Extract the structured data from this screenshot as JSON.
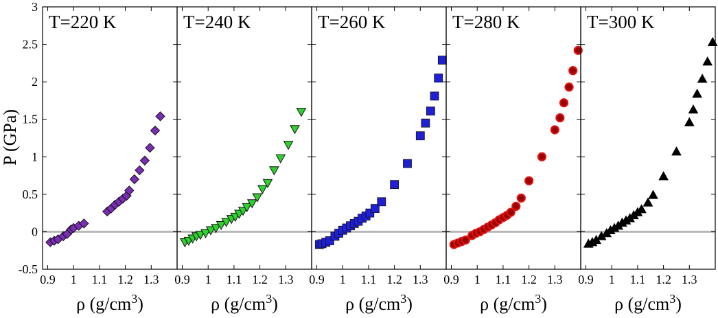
{
  "chart_data": {
    "type": "scatter",
    "ylabel": "P (GPa)",
    "xlabel": "ρ (g/cm³)",
    "xlabel_base": "ρ (g/cm",
    "xlabel_sup": "3",
    "xlabel_close": ")",
    "ylim": [
      -0.5,
      3
    ],
    "xlim": [
      0.88,
      1.4
    ],
    "yticks": [
      -0.5,
      0,
      0.5,
      1,
      1.5,
      2,
      2.5,
      3
    ],
    "ytick_labels": [
      "-0.5",
      "0",
      "0.5",
      "1",
      "1.5",
      "2",
      "2.5",
      "3"
    ],
    "xticks": [
      0.9,
      1.0,
      1.1,
      1.2,
      1.3
    ],
    "xtick_labels": [
      "0.9",
      "1",
      "1.1",
      "1.2",
      "1.3"
    ],
    "reference_line_y": 0,
    "panels": [
      {
        "title": "T=220 K",
        "marker": "diamond",
        "color": "#7a2db5",
        "points": [
          [
            0.91,
            -0.14
          ],
          [
            0.925,
            -0.12
          ],
          [
            0.94,
            -0.1
          ],
          [
            0.96,
            -0.06
          ],
          [
            0.975,
            -0.03
          ],
          [
            0.99,
            0.03
          ],
          [
            1.0,
            0.05
          ],
          [
            1.02,
            0.08
          ],
          [
            1.04,
            0.11
          ],
          [
            1.13,
            0.27
          ],
          [
            1.145,
            0.31
          ],
          [
            1.16,
            0.36
          ],
          [
            1.175,
            0.4
          ],
          [
            1.19,
            0.44
          ],
          [
            1.205,
            0.48
          ],
          [
            1.215,
            0.55
          ],
          [
            1.235,
            0.7
          ],
          [
            1.255,
            0.82
          ],
          [
            1.275,
            0.95
          ],
          [
            1.295,
            1.12
          ],
          [
            1.315,
            1.35
          ],
          [
            1.335,
            1.54
          ]
        ]
      },
      {
        "title": "T=240 K",
        "marker": "triangle-down",
        "color": "#2fd12f",
        "points": [
          [
            0.91,
            -0.14
          ],
          [
            0.925,
            -0.12
          ],
          [
            0.94,
            -0.09
          ],
          [
            0.955,
            -0.06
          ],
          [
            0.97,
            -0.04
          ],
          [
            0.99,
            -0.02
          ],
          [
            1.01,
            0.02
          ],
          [
            1.03,
            0.05
          ],
          [
            1.05,
            0.09
          ],
          [
            1.07,
            0.13
          ],
          [
            1.09,
            0.17
          ],
          [
            1.105,
            0.2
          ],
          [
            1.12,
            0.24
          ],
          [
            1.135,
            0.28
          ],
          [
            1.15,
            0.33
          ],
          [
            1.17,
            0.38
          ],
          [
            1.19,
            0.46
          ],
          [
            1.21,
            0.57
          ],
          [
            1.23,
            0.65
          ],
          [
            1.255,
            0.82
          ],
          [
            1.28,
            0.98
          ],
          [
            1.31,
            1.16
          ],
          [
            1.335,
            1.37
          ],
          [
            1.36,
            1.6
          ]
        ]
      },
      {
        "title": "T=260 K",
        "marker": "square",
        "color": "#1f1fd6",
        "points": [
          [
            0.91,
            -0.17
          ],
          [
            0.92,
            -0.16
          ],
          [
            0.935,
            -0.14
          ],
          [
            0.95,
            -0.12
          ],
          [
            0.97,
            -0.06
          ],
          [
            0.985,
            -0.02
          ],
          [
            1.0,
            0.02
          ],
          [
            1.015,
            0.05
          ],
          [
            1.03,
            0.08
          ],
          [
            1.045,
            0.11
          ],
          [
            1.06,
            0.14
          ],
          [
            1.075,
            0.18
          ],
          [
            1.09,
            0.21
          ],
          [
            1.105,
            0.25
          ],
          [
            1.125,
            0.31
          ],
          [
            1.15,
            0.4
          ],
          [
            1.2,
            0.63
          ],
          [
            1.25,
            0.91
          ],
          [
            1.3,
            1.28
          ],
          [
            1.32,
            1.45
          ],
          [
            1.34,
            1.61
          ],
          [
            1.355,
            1.81
          ],
          [
            1.37,
            2.05
          ],
          [
            1.385,
            2.29
          ]
        ]
      },
      {
        "title": "T=280 K",
        "marker": "circle",
        "color": "#dd1111",
        "points": [
          [
            0.91,
            -0.17
          ],
          [
            0.925,
            -0.15
          ],
          [
            0.94,
            -0.13
          ],
          [
            0.955,
            -0.11
          ],
          [
            0.98,
            -0.05
          ],
          [
            0.995,
            -0.02
          ],
          [
            1.01,
            0.0
          ],
          [
            1.025,
            0.03
          ],
          [
            1.04,
            0.06
          ],
          [
            1.055,
            0.09
          ],
          [
            1.07,
            0.12
          ],
          [
            1.085,
            0.16
          ],
          [
            1.1,
            0.19
          ],
          [
            1.115,
            0.22
          ],
          [
            1.13,
            0.26
          ],
          [
            1.15,
            0.34
          ],
          [
            1.17,
            0.45
          ],
          [
            1.2,
            0.68
          ],
          [
            1.25,
            1.0
          ],
          [
            1.3,
            1.36
          ],
          [
            1.32,
            1.52
          ],
          [
            1.335,
            1.72
          ],
          [
            1.355,
            1.93
          ],
          [
            1.37,
            2.15
          ],
          [
            1.39,
            2.42
          ]
        ]
      },
      {
        "title": "T=300 K",
        "marker": "triangle-up",
        "color": "#000000",
        "points": [
          [
            0.91,
            -0.16
          ],
          [
            0.925,
            -0.14
          ],
          [
            0.94,
            -0.11
          ],
          [
            0.96,
            -0.06
          ],
          [
            0.98,
            -0.02
          ],
          [
            0.995,
            0.02
          ],
          [
            1.01,
            0.05
          ],
          [
            1.025,
            0.08
          ],
          [
            1.04,
            0.12
          ],
          [
            1.055,
            0.15
          ],
          [
            1.07,
            0.18
          ],
          [
            1.085,
            0.22
          ],
          [
            1.1,
            0.26
          ],
          [
            1.115,
            0.3
          ],
          [
            1.14,
            0.39
          ],
          [
            1.16,
            0.49
          ],
          [
            1.2,
            0.74
          ],
          [
            1.25,
            1.07
          ],
          [
            1.3,
            1.46
          ],
          [
            1.315,
            1.63
          ],
          [
            1.33,
            1.84
          ],
          [
            1.35,
            2.04
          ],
          [
            1.37,
            2.27
          ],
          [
            1.39,
            2.53
          ]
        ]
      }
    ]
  }
}
